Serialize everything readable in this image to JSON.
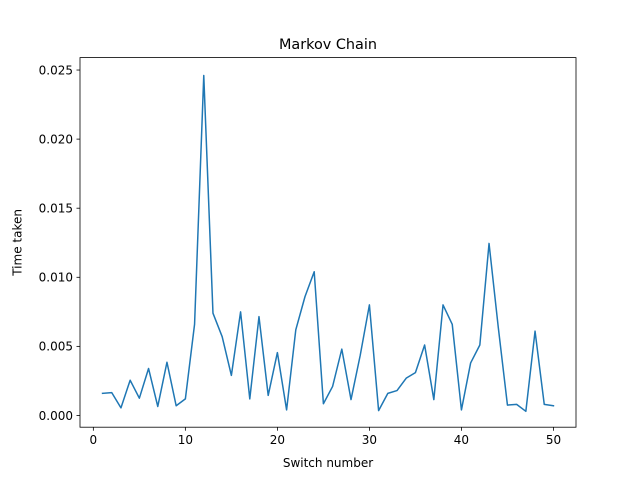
{
  "chart_data": {
    "type": "line",
    "title": "Markov Chain",
    "xlabel": "Switch number",
    "ylabel": "Time taken",
    "xlim": [
      -1.45,
      52.45
    ],
    "ylim": [
      -0.00085,
      0.0259
    ],
    "x_ticks": [
      0,
      10,
      20,
      30,
      40,
      50
    ],
    "x_tick_labels": [
      "0",
      "10",
      "20",
      "30",
      "40",
      "50"
    ],
    "y_ticks": [
      0.0,
      0.005,
      0.01,
      0.015,
      0.02,
      0.025
    ],
    "y_tick_labels": [
      "0.000",
      "0.005",
      "0.010",
      "0.015",
      "0.020",
      "0.025"
    ],
    "grid": false,
    "legend": "none",
    "series": [
      {
        "color": "#1f77b4",
        "x": [
          1,
          2,
          3,
          4,
          5,
          6,
          7,
          8,
          9,
          10,
          11,
          12,
          13,
          14,
          15,
          16,
          17,
          18,
          19,
          20,
          21,
          22,
          23,
          24,
          25,
          26,
          27,
          28,
          29,
          30,
          31,
          32,
          33,
          34,
          35,
          36,
          37,
          38,
          39,
          40,
          41,
          42,
          43,
          44,
          45,
          46,
          47,
          48,
          49,
          50
        ],
        "y": [
          0.0016,
          0.00165,
          0.00055,
          0.00255,
          0.00125,
          0.0034,
          0.00065,
          0.00385,
          0.0007,
          0.0012,
          0.0066,
          0.0246,
          0.0074,
          0.0057,
          0.0029,
          0.0075,
          0.0012,
          0.00715,
          0.00145,
          0.00455,
          0.0004,
          0.0062,
          0.0086,
          0.0104,
          0.00085,
          0.0021,
          0.0048,
          0.00115,
          0.00435,
          0.008,
          0.00035,
          0.0016,
          0.0018,
          0.0027,
          0.0031,
          0.0051,
          0.00115,
          0.008,
          0.0066,
          0.0004,
          0.0038,
          0.0051,
          0.01245,
          0.0064,
          0.00075,
          0.0008,
          0.0003,
          0.0061,
          0.0008,
          0.0007
        ]
      }
    ]
  }
}
